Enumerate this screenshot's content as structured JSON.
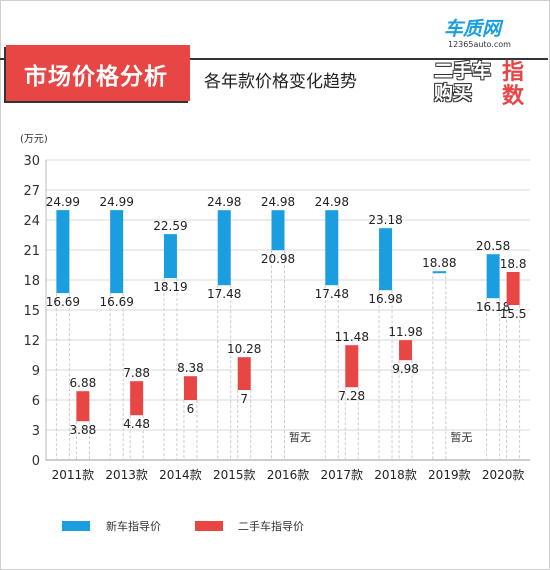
{
  "header": {
    "title": "市场价格分析",
    "subtitle": "各年款价格变化趋势"
  },
  "logo": {
    "brand": "车质网",
    "url": "12365auto.com",
    "line1": "二手车",
    "line2": "购买",
    "index_a": "指",
    "index_b": "数"
  },
  "colors": {
    "new": "#1a9ee0",
    "used": "#e84545"
  },
  "chart_data": {
    "type": "bar",
    "unit_label": "(万元)",
    "ylim": [
      0,
      30
    ],
    "yticks": [
      0,
      3,
      6,
      9,
      12,
      15,
      18,
      21,
      24,
      27,
      30
    ],
    "categories": [
      "2011款",
      "2013款",
      "2014款",
      "2015款",
      "2016款",
      "2017款",
      "2018款",
      "2019款",
      "2020款"
    ],
    "series": [
      {
        "name": "新车指导价",
        "ranges": [
          [
            16.69,
            24.99
          ],
          [
            16.69,
            24.99
          ],
          [
            18.19,
            22.59
          ],
          [
            17.48,
            24.98
          ],
          [
            20.98,
            24.98
          ],
          [
            17.48,
            24.98
          ],
          [
            16.98,
            23.18
          ],
          [
            18.88,
            18.88
          ],
          [
            16.18,
            20.58
          ]
        ],
        "labels": [
          [
            "16.69",
            "24.99"
          ],
          [
            "16.69",
            "24.99"
          ],
          [
            "18.19",
            "22.59"
          ],
          [
            "17.48",
            "24.98"
          ],
          [
            "20.98",
            "24.98"
          ],
          [
            "17.48",
            "24.98"
          ],
          [
            "16.98",
            "23.18"
          ],
          [
            "18.88",
            "18.88"
          ],
          [
            "16.18",
            "20.58"
          ]
        ]
      },
      {
        "name": "二手车指导价",
        "ranges": [
          [
            3.88,
            6.88
          ],
          [
            4.48,
            7.88
          ],
          [
            6,
            8.38
          ],
          [
            7,
            10.28
          ],
          null,
          [
            7.28,
            11.48
          ],
          [
            9.98,
            11.98
          ],
          null,
          [
            15.5,
            18.8
          ]
        ],
        "labels": [
          [
            "3.88",
            "6.88"
          ],
          [
            "4.48",
            "7.88"
          ],
          [
            "6",
            "8.38"
          ],
          [
            "7",
            "10.28"
          ],
          null,
          [
            "7.28",
            "11.48"
          ],
          [
            "9.98",
            "11.98"
          ],
          null,
          [
            "15.5",
            "18.8"
          ]
        ]
      }
    ],
    "na_label": "暂无",
    "legend_position": "bottom-left"
  }
}
